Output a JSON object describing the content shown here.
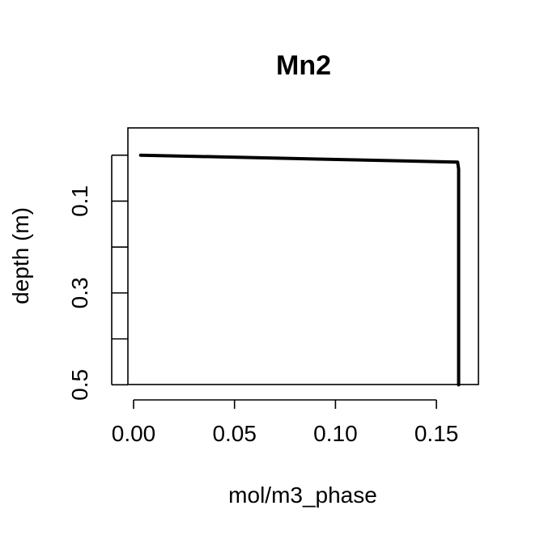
{
  "chart_data": {
    "type": "line",
    "title": "Mn2",
    "xlabel": "mol/m3_phase",
    "ylabel": "depth (m)",
    "xlim": [
      0.0,
      0.168
    ],
    "ylim": [
      0.5,
      -0.02
    ],
    "y_reversed": true,
    "grid": false,
    "x_ticks": [
      0.0,
      0.05,
      0.1,
      0.15
    ],
    "x_tick_labels": [
      "0.00",
      "0.05",
      "0.10",
      "0.15"
    ],
    "y_ticks": [
      0.0,
      0.1,
      0.2,
      0.3,
      0.4,
      0.5
    ],
    "y_tick_labels": [
      "",
      "0.1",
      "",
      "0.3",
      "",
      "0.5"
    ],
    "series": [
      {
        "color": "#000000",
        "x": [
          0.0035,
          0.1605,
          0.161,
          0.161,
          0.161,
          0.161,
          0.161
        ],
        "y": [
          0.0,
          0.015,
          0.03,
          0.1,
          0.2,
          0.3,
          0.5
        ]
      }
    ]
  }
}
